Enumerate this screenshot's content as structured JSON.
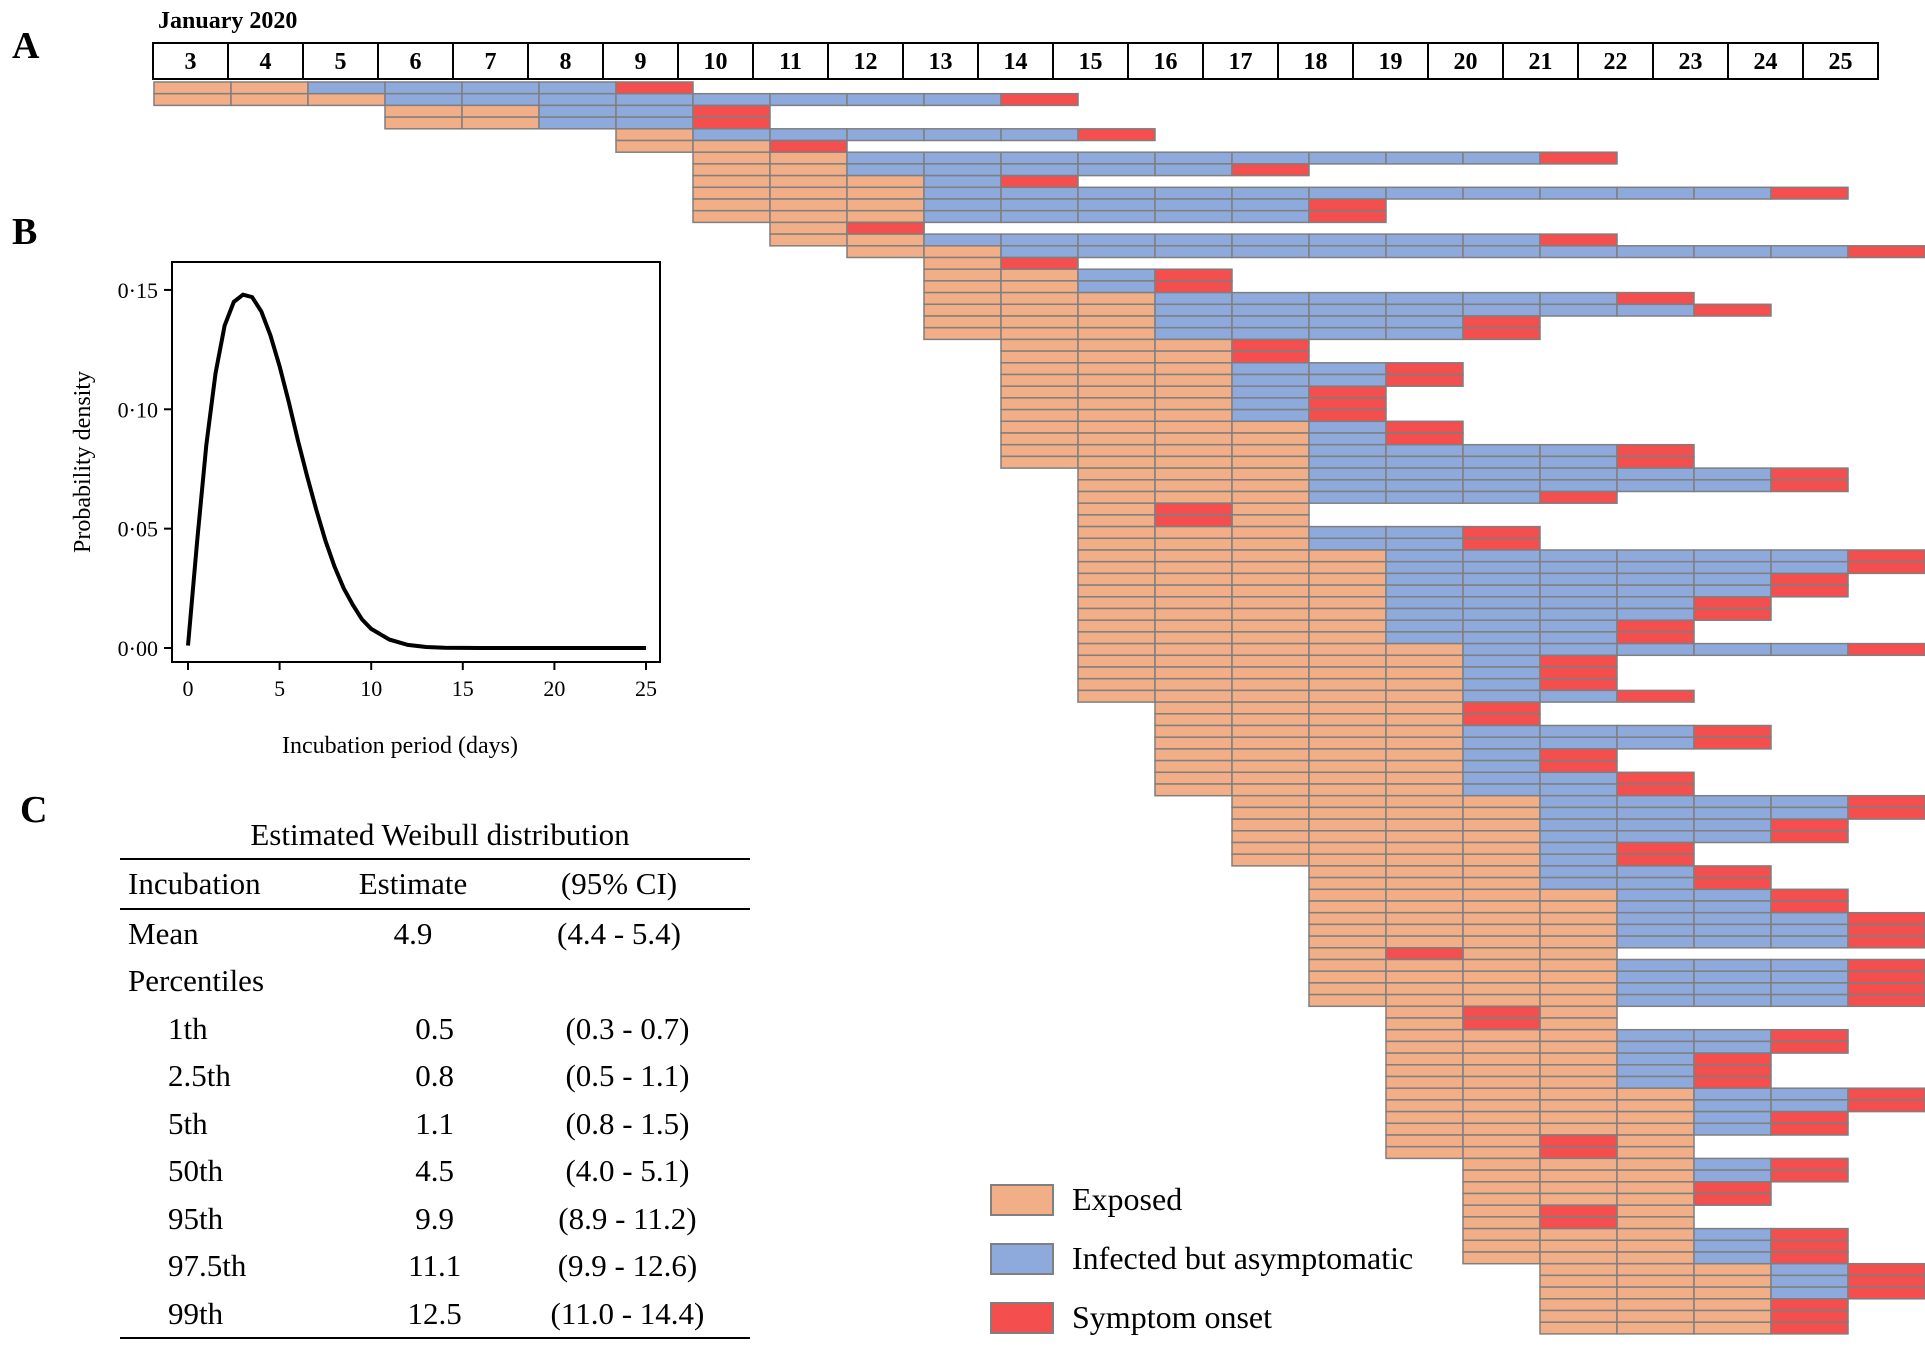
{
  "panels": {
    "a": "A",
    "b": "B",
    "c": "C"
  },
  "timeline": {
    "month_label": "January 2020",
    "days": [
      "3",
      "4",
      "5",
      "6",
      "7",
      "8",
      "9",
      "10",
      "11",
      "12",
      "13",
      "14",
      "15",
      "16",
      "17",
      "18",
      "19",
      "20",
      "21",
      "22",
      "23",
      "24",
      "25"
    ],
    "colors": {
      "exposed": "#F2AE86",
      "infected": "#8EA9DB",
      "onset": "#F44E4E",
      "border": "#7F7F7F"
    },
    "legend": [
      {
        "label": "Exposed",
        "color": "#F2AE86"
      },
      {
        "label": "Infected but asymptomatic",
        "color": "#8EA9DB"
      },
      {
        "label": "Symptom onset",
        "color": "#F44E4E"
      }
    ]
  },
  "chart_data": {
    "type": "line",
    "xlabel": "Incubation period (days)",
    "ylabel": "Probability density",
    "xlim": [
      0,
      25
    ],
    "ylim": [
      0,
      0.155
    ],
    "xticks": [
      0,
      5,
      10,
      15,
      20,
      25
    ],
    "yticks": [
      "0·00",
      "0·05",
      "0·10",
      "0·15"
    ],
    "yticks_values": [
      0,
      0.05,
      0.1,
      0.15
    ],
    "x": [
      0,
      0.5,
      1,
      1.5,
      2,
      2.5,
      3,
      3.5,
      4,
      4.5,
      5,
      5.5,
      6,
      6.5,
      7,
      7.5,
      8,
      8.5,
      9,
      9.5,
      10,
      11,
      12,
      13,
      14,
      15,
      16,
      18,
      20,
      22,
      25
    ],
    "y": [
      0.001,
      0.045,
      0.085,
      0.115,
      0.135,
      0.145,
      0.148,
      0.147,
      0.141,
      0.131,
      0.118,
      0.103,
      0.087,
      0.072,
      0.058,
      0.045,
      0.034,
      0.025,
      0.018,
      0.012,
      0.008,
      0.0035,
      0.0013,
      0.0004,
      0.0001,
      3e-05,
      0.0,
      0.0,
      0.0,
      0.0,
      0.0
    ]
  },
  "table": {
    "caption": "Estimated Weibull distribution",
    "headers": [
      "Incubation",
      "Estimate",
      "(95% CI)"
    ],
    "rows": [
      [
        "Mean",
        "4.9",
        "(4.4 - 5.4)"
      ],
      [
        "Percentiles",
        "",
        ""
      ],
      [
        "1th",
        "0.5",
        "(0.3 - 0.7)"
      ],
      [
        "2.5th",
        "0.8",
        "(0.5 - 1.1)"
      ],
      [
        "5th",
        "1.1",
        "(0.8 - 1.5)"
      ],
      [
        "50th",
        "4.5",
        "(4.0 - 5.1)"
      ],
      [
        "95th",
        "9.9",
        "(8.9 - 11.2)"
      ],
      [
        "97.5th",
        "11.1",
        "(9.9 - 12.6)"
      ],
      [
        "99th",
        "12.5",
        "(11.0 - 14.4)"
      ]
    ]
  }
}
